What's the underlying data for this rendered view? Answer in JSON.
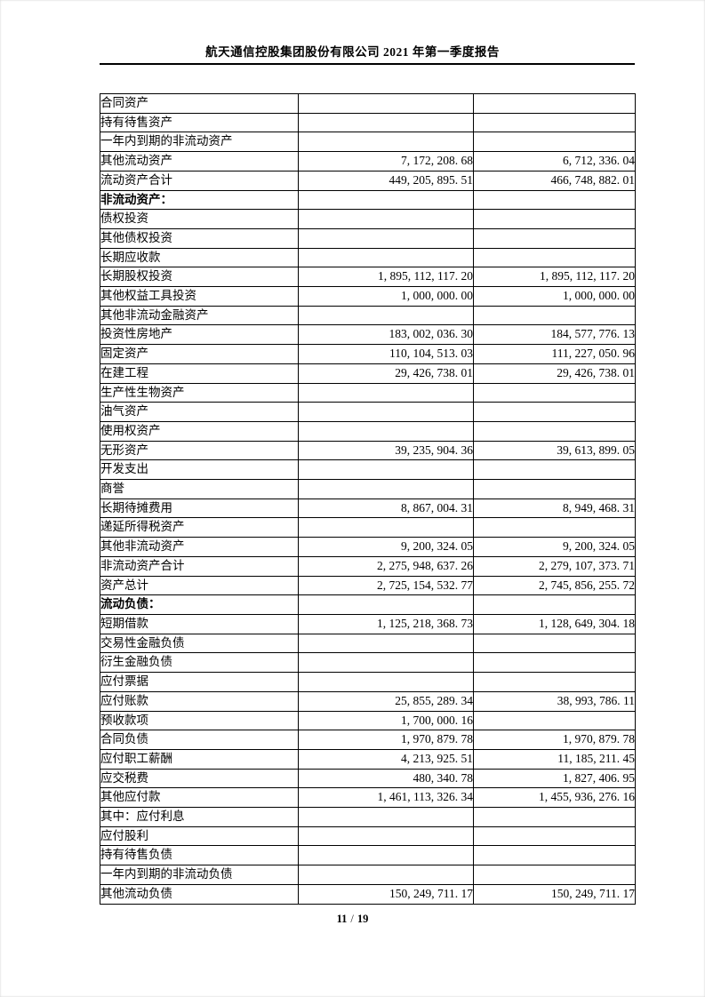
{
  "document": {
    "header": {
      "title": "航天通信控股集团股份有限公司 2021 年第一季度报告"
    },
    "footer": {
      "current_page": "11",
      "separator": "/",
      "total_pages": "19"
    }
  },
  "table": {
    "rows": [
      {
        "label": "合同资产",
        "indent": 1,
        "bold": false,
        "value1": "",
        "value2": ""
      },
      {
        "label": "持有待售资产",
        "indent": 1,
        "bold": false,
        "value1": "",
        "value2": ""
      },
      {
        "label": "一年内到期的非流动资产",
        "indent": 1,
        "bold": false,
        "value1": "",
        "value2": ""
      },
      {
        "label": "其他流动资产",
        "indent": 1,
        "bold": false,
        "value1": "7, 172, 208. 68",
        "value2": "6, 712, 336. 04"
      },
      {
        "label": "流动资产合计",
        "indent": 2,
        "bold": false,
        "value1": "449, 205, 895. 51",
        "value2": "466, 748, 882. 01"
      },
      {
        "label": "非流动资产：",
        "indent": 0,
        "bold": true,
        "value1": "",
        "value2": ""
      },
      {
        "label": "债权投资",
        "indent": 1,
        "bold": false,
        "value1": "",
        "value2": ""
      },
      {
        "label": "其他债权投资",
        "indent": 1,
        "bold": false,
        "value1": "",
        "value2": ""
      },
      {
        "label": "长期应收款",
        "indent": 1,
        "bold": false,
        "value1": "",
        "value2": ""
      },
      {
        "label": "长期股权投资",
        "indent": 1,
        "bold": false,
        "value1": "1, 895, 112, 117. 20",
        "value2": "1, 895, 112, 117. 20"
      },
      {
        "label": "其他权益工具投资",
        "indent": 1,
        "bold": false,
        "value1": "1, 000, 000. 00",
        "value2": "1, 000, 000. 00"
      },
      {
        "label": "其他非流动金融资产",
        "indent": 1,
        "bold": false,
        "value1": "",
        "value2": ""
      },
      {
        "label": "投资性房地产",
        "indent": 1,
        "bold": false,
        "value1": "183, 002, 036. 30",
        "value2": "184, 577, 776. 13"
      },
      {
        "label": "固定资产",
        "indent": 1,
        "bold": false,
        "value1": "110, 104, 513. 03",
        "value2": "111, 227, 050. 96"
      },
      {
        "label": "在建工程",
        "indent": 1,
        "bold": false,
        "value1": "29, 426, 738. 01",
        "value2": "29, 426, 738. 01"
      },
      {
        "label": "生产性生物资产",
        "indent": 1,
        "bold": false,
        "value1": "",
        "value2": ""
      },
      {
        "label": "油气资产",
        "indent": 1,
        "bold": false,
        "value1": "",
        "value2": ""
      },
      {
        "label": "使用权资产",
        "indent": 1,
        "bold": false,
        "value1": "",
        "value2": ""
      },
      {
        "label": "无形资产",
        "indent": 1,
        "bold": false,
        "value1": "39, 235, 904. 36",
        "value2": "39, 613, 899. 05"
      },
      {
        "label": "开发支出",
        "indent": 1,
        "bold": false,
        "value1": "",
        "value2": ""
      },
      {
        "label": "商誉",
        "indent": 1,
        "bold": false,
        "value1": "",
        "value2": ""
      },
      {
        "label": "长期待摊费用",
        "indent": 1,
        "bold": false,
        "value1": "8, 867, 004. 31",
        "value2": "8, 949, 468. 31"
      },
      {
        "label": "递延所得税资产",
        "indent": 1,
        "bold": false,
        "value1": "",
        "value2": ""
      },
      {
        "label": "其他非流动资产",
        "indent": 1,
        "bold": false,
        "value1": "9, 200, 324. 05",
        "value2": "9, 200, 324. 05"
      },
      {
        "label": "非流动资产合计",
        "indent": 2,
        "bold": false,
        "value1": "2, 275, 948, 637. 26",
        "value2": "2, 279, 107, 373. 71"
      },
      {
        "label": "资产总计",
        "indent": 3,
        "bold": false,
        "value1": "2, 725, 154, 532. 77",
        "value2": "2, 745, 856, 255. 72"
      },
      {
        "label": "流动负债：",
        "indent": 0,
        "bold": true,
        "value1": "",
        "value2": ""
      },
      {
        "label": "短期借款",
        "indent": 1,
        "bold": false,
        "value1": "1, 125, 218, 368. 73",
        "value2": "1, 128, 649, 304. 18"
      },
      {
        "label": "交易性金融负债",
        "indent": 1,
        "bold": false,
        "value1": "",
        "value2": ""
      },
      {
        "label": "衍生金融负债",
        "indent": 1,
        "bold": false,
        "value1": "",
        "value2": ""
      },
      {
        "label": "应付票据",
        "indent": 1,
        "bold": false,
        "value1": "",
        "value2": ""
      },
      {
        "label": "应付账款",
        "indent": 1,
        "bold": false,
        "value1": "25, 855, 289. 34",
        "value2": "38, 993, 786. 11"
      },
      {
        "label": "预收款项",
        "indent": 1,
        "bold": false,
        "value1": "1, 700, 000. 16",
        "value2": ""
      },
      {
        "label": "合同负债",
        "indent": 1,
        "bold": false,
        "value1": "1, 970, 879. 78",
        "value2": "1, 970, 879. 78"
      },
      {
        "label": "应付职工薪酬",
        "indent": 1,
        "bold": false,
        "value1": "4, 213, 925. 51",
        "value2": "11, 185, 211. 45"
      },
      {
        "label": "应交税费",
        "indent": 1,
        "bold": false,
        "value1": "480, 340. 78",
        "value2": "1, 827, 406. 95"
      },
      {
        "label": "其他应付款",
        "indent": 1,
        "bold": false,
        "value1": "1, 461, 113, 326. 34",
        "value2": "1, 455, 936, 276. 16"
      },
      {
        "label": "其中：应付利息",
        "indent": 1,
        "bold": false,
        "value1": "",
        "value2": ""
      },
      {
        "label": "应付股利",
        "indent": 4,
        "bold": false,
        "value1": "",
        "value2": ""
      },
      {
        "label": "持有待售负债",
        "indent": 1,
        "bold": false,
        "value1": "",
        "value2": ""
      },
      {
        "label": "一年内到期的非流动负债",
        "indent": 1,
        "bold": false,
        "value1": "",
        "value2": ""
      },
      {
        "label": "其他流动负债",
        "indent": 1,
        "bold": false,
        "value1": "150, 249, 711. 17",
        "value2": "150, 249, 711. 17"
      }
    ]
  }
}
